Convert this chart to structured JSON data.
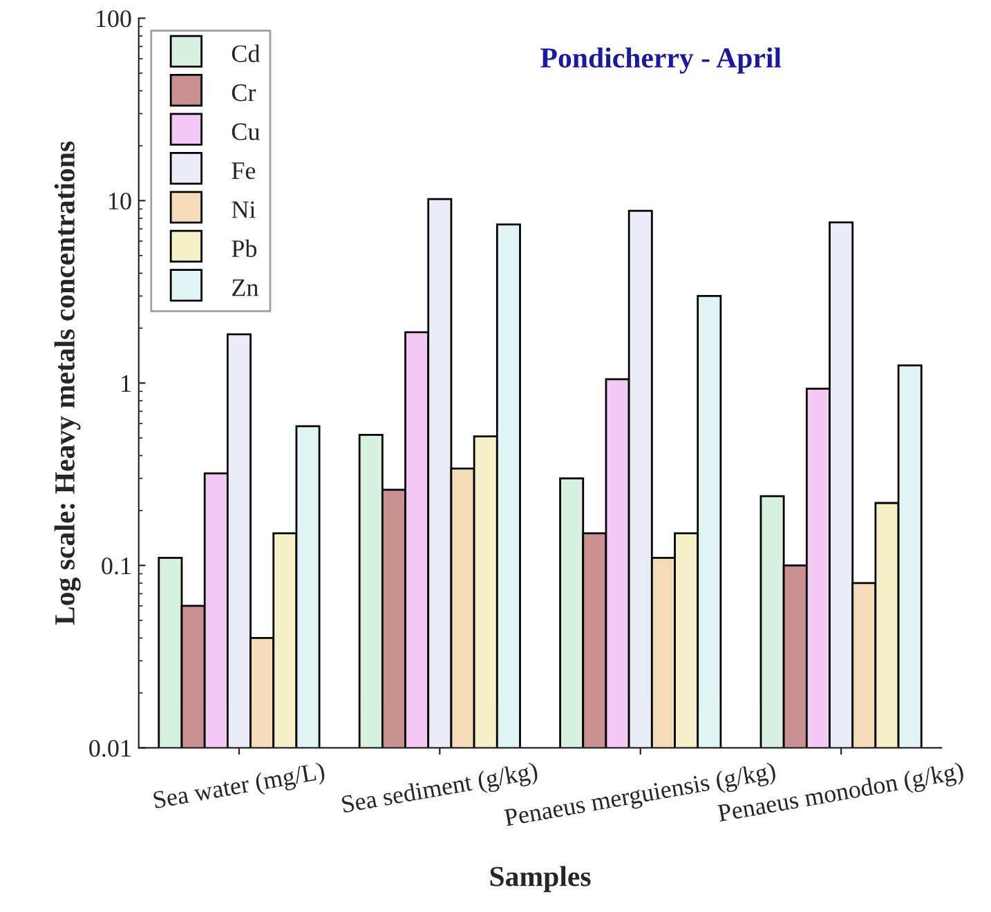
{
  "chart_data": {
    "type": "bar",
    "title": "Pondicherry - April",
    "xlabel": "Samples",
    "ylabel": "Log scale: Heavy metals concentrations",
    "categories": [
      "Sea water (mg/L)",
      "Sea sediment (g/kg)",
      "Penaeus merguiensis (g/kg)",
      "Penaeus monodon (g/kg)"
    ],
    "series": [
      {
        "name": "Cd",
        "color": "#d8f0e0",
        "values": [
          0.11,
          0.52,
          0.3,
          0.24
        ]
      },
      {
        "name": "Cr",
        "color": "#c89090",
        "values": [
          0.06,
          0.26,
          0.15,
          0.1
        ]
      },
      {
        "name": "Cu",
        "color": "#f4c8f4",
        "values": [
          0.32,
          1.9,
          1.05,
          0.93
        ]
      },
      {
        "name": "Fe",
        "color": "#ececf8",
        "values": [
          1.85,
          10.2,
          8.8,
          7.6
        ]
      },
      {
        "name": "Ni",
        "color": "#f5dcb8",
        "values": [
          0.04,
          0.34,
          0.11,
          0.08
        ]
      },
      {
        "name": "Pb",
        "color": "#f5f0c8",
        "values": [
          0.15,
          0.51,
          0.15,
          0.22
        ]
      },
      {
        "name": "Zn",
        "color": "#e0f4f4",
        "values": [
          0.58,
          7.4,
          3.0,
          1.25
        ]
      }
    ],
    "log": "y",
    "ylim": [
      0.01,
      100
    ],
    "yticks": [
      0.01,
      0.1,
      1,
      10,
      100
    ],
    "grid": false,
    "legend": "top left"
  }
}
